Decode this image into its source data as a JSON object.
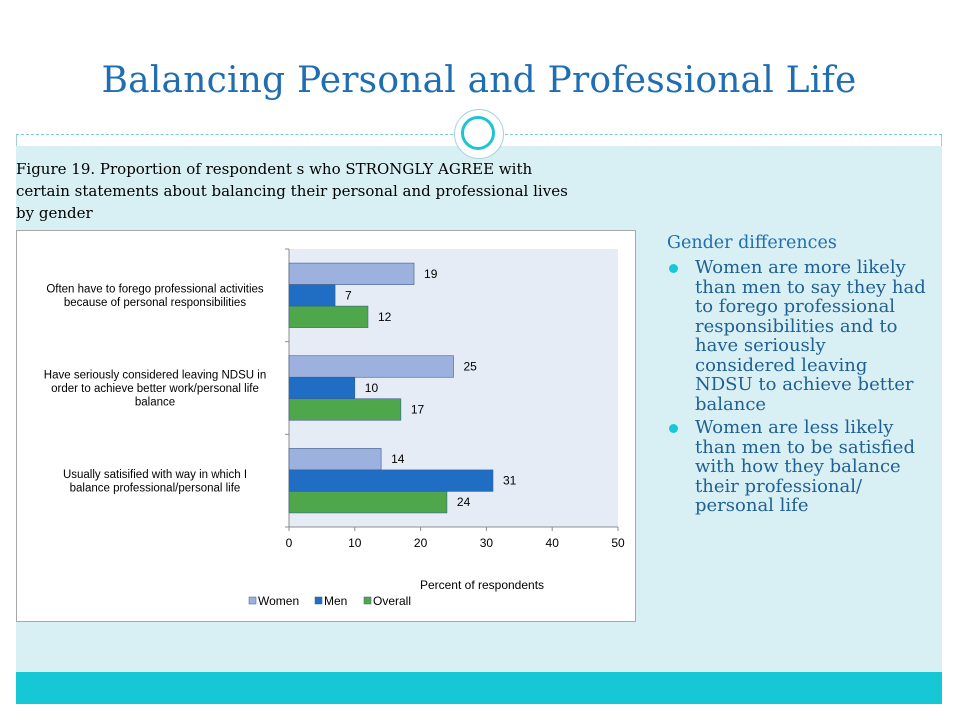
{
  "slide": {
    "title": "Balancing Personal and Professional Life",
    "caption_lines": [
      "Figure 19.  Proportion of respondent s who STRONGLY AGREE with",
      "certain statements about balancing  their personal and professional lives",
      "by gender"
    ]
  },
  "side_panel": {
    "heading": "Gender differences",
    "bullets": [
      "Women are more likely than men to say they had to forego professional responsibilities and to have seriously considered leaving NDSU to achieve better balance",
      "Women are less likely than men to be satisfied with how they balance their professional/ personal life"
    ]
  },
  "colors": {
    "title": "#1f6db3",
    "accent": "#16c7d6",
    "body_bg": "#d8f0f3",
    "plot_bg": "#e6ecf5"
  },
  "chart_data": {
    "type": "bar",
    "orientation": "horizontal",
    "categories": [
      [
        "Often have to forego professional activities",
        "because of personal responsibilities"
      ],
      [
        "Have seriously considered leaving NDSU in",
        "order to achieve better work/personal life",
        "balance"
      ],
      [
        "Usually satisified with way in which I",
        "balance professional/personal life"
      ]
    ],
    "series": [
      {
        "name": "Women",
        "values": [
          19,
          25,
          14
        ],
        "color": "#9cb1de"
      },
      {
        "name": "Men",
        "values": [
          7,
          10,
          31
        ],
        "color": "#1f6ec4"
      },
      {
        "name": "Overall",
        "values": [
          12,
          17,
          24
        ],
        "color": "#4ea84b"
      }
    ],
    "xlabel": "Percent of respondents",
    "xlim": [
      0,
      50
    ],
    "xticks": [
      0,
      10,
      20,
      30,
      40,
      50
    ],
    "legend_position": "bottom",
    "grid": false
  }
}
